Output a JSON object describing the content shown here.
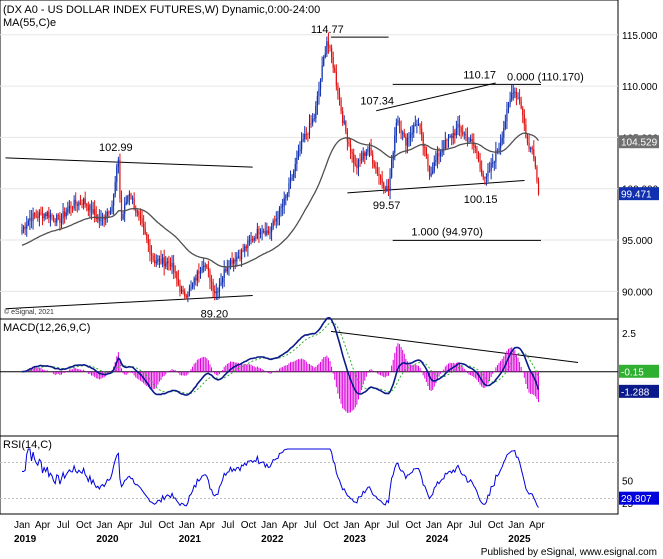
{
  "chart_data": [
    {
      "type": "candlestick",
      "title": "(DX A0 - US DOLLAR INDEX FUTURES,W) Dynamic,0:00-24:00",
      "indicator_label": "MA(55,C)e",
      "y_ticks": [
        "115.000",
        "110.000",
        "105.000",
        "100.000",
        "95.000",
        "90.000"
      ],
      "ylim": [
        87.5,
        118.0
      ],
      "last_close": "99.471",
      "ma_last": "104.529",
      "annotations": [
        {
          "label": "102.99",
          "x": 2020.08,
          "y": 102.99
        },
        {
          "label": "114.77",
          "x": 2022.75,
          "y": 114.77
        },
        {
          "label": "107.34",
          "x": 2023.52,
          "y": 107.34
        },
        {
          "label": "110.17",
          "x": 2024.72,
          "y": 110.17
        },
        {
          "label": "99.57",
          "x": 2023.38,
          "y": 99.57
        },
        {
          "label": "100.15",
          "x": 2024.46,
          "y": 100.15
        },
        {
          "label": "89.20",
          "x": 2021.29,
          "y": 89.2
        },
        {
          "label": "0.000 (110.170)",
          "x": 2024.96,
          "y": 110.17
        },
        {
          "label": "1.000 (94.970)",
          "x": 2024.6,
          "y": 94.97
        }
      ],
      "copyright": "© eSignal, 2021"
    },
    {
      "type": "line",
      "title": "MACD(12,26,9,C)",
      "y_ticks": [
        "2.5",
        "0"
      ],
      "ylim": [
        -4.0,
        3.2
      ],
      "macd_last": "-1.288",
      "signal_last": "-0.15"
    },
    {
      "type": "line",
      "title": "RSI(14,C)",
      "y_ticks": [
        "50",
        "25"
      ],
      "ylim": [
        15,
        95
      ],
      "rsi_last": "29.807"
    }
  ],
  "x_axis": {
    "ticks": [
      {
        "label": "Jan",
        "x": 2019.0
      },
      {
        "label": "Apr",
        "x": 2019.25
      },
      {
        "label": "Jul",
        "x": 2019.5
      },
      {
        "label": "Oct",
        "x": 2019.75
      },
      {
        "label": "Jan",
        "x": 2020.0
      },
      {
        "label": "Apr",
        "x": 2020.25
      },
      {
        "label": "Jul",
        "x": 2020.5
      },
      {
        "label": "Oct",
        "x": 2020.75
      },
      {
        "label": "Jan",
        "x": 2021.0
      },
      {
        "label": "Apr",
        "x": 2021.25
      },
      {
        "label": "Jul",
        "x": 2021.5
      },
      {
        "label": "Oct",
        "x": 2021.75
      },
      {
        "label": "Jan",
        "x": 2022.0
      },
      {
        "label": "Apr",
        "x": 2022.25
      },
      {
        "label": "Jul",
        "x": 2022.5
      },
      {
        "label": "Oct",
        "x": 2022.75
      },
      {
        "label": "Jan",
        "x": 2023.0
      },
      {
        "label": "Apr",
        "x": 2023.25
      },
      {
        "label": "Jul",
        "x": 2023.5
      },
      {
        "label": "Oct",
        "x": 2023.75
      },
      {
        "label": "Jan",
        "x": 2024.0
      },
      {
        "label": "Apr",
        "x": 2024.25
      },
      {
        "label": "Jul",
        "x": 2024.5
      },
      {
        "label": "Oct",
        "x": 2024.75
      },
      {
        "label": "Jan",
        "x": 2025.0
      },
      {
        "label": "Apr",
        "x": 2025.25
      }
    ],
    "years": [
      "2019",
      "2020",
      "2021",
      "2022",
      "2023",
      "2024",
      "2025"
    ]
  },
  "footer": "Published by eSignal, www.esignal.com",
  "colors": {
    "up": "#1030b0",
    "down": "#e01010",
    "ma": "#505050",
    "macd": "#0a1a8a",
    "signal": "#30b030",
    "hist": "#dd00dd",
    "rsi": "#0000dd",
    "price_tag": "#1030b0",
    "ma_tag": "#707070",
    "macd_tag": "#0a1a8a",
    "rsi_tag": "#0000dd"
  }
}
